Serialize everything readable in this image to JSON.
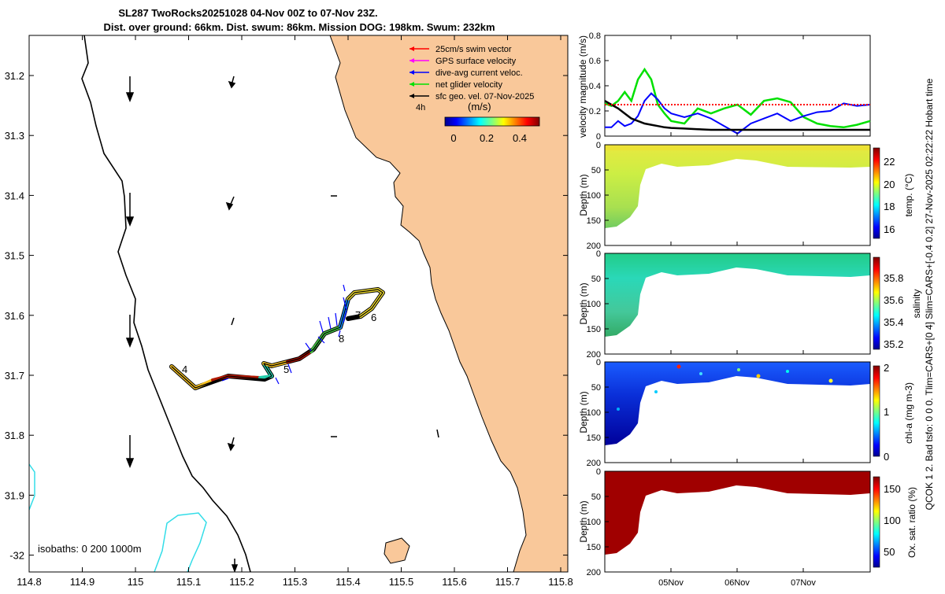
{
  "title": {
    "line1": "SL287 TwoRocks20251028 04-Nov 00Z to 07-Nov 23Z.",
    "line2": "Dist. over ground: 66km. Dist. swum: 86km. Mission DOG: 198km. Swum: 232km"
  },
  "side_text": "QCOK 1  2. Bad tsfo: 0  0  0. Tlim=CARS+[0 4] Slim=CARS+[-0.4 0.2] 27-Nov-2025 02:22:22 Hobart time",
  "colors": {
    "land": "#f9c89a",
    "swim_vector": "#ff0000",
    "gps_velocity": "#ff00ff",
    "current": "#0000ff",
    "glider_velocity": "#00e000",
    "sfc_geo": "#000000",
    "isobath": "#33dde8"
  },
  "map": {
    "x_ticks": [
      "114.8",
      "114.9",
      "115",
      "115.1",
      "115.2",
      "115.3",
      "115.4",
      "115.5",
      "115.6",
      "115.7",
      "115.8"
    ],
    "y_ticks": [
      "31.2",
      "31.3",
      "31.4",
      "31.5",
      "31.6",
      "31.7",
      "31.8",
      "31.9",
      "-32"
    ],
    "legend": [
      {
        "label": "25cm/s swim vector",
        "color": "#ff0000"
      },
      {
        "label": "GPS surface velocity",
        "color": "#ff00ff"
      },
      {
        "label": "dive-avg current veloc.",
        "color": "#0000ff"
      },
      {
        "label": "net glider velocity",
        "color": "#00e000"
      },
      {
        "label": "sfc geo. vel. 07-Nov-2025",
        "color": "#000000"
      }
    ],
    "colorbar_tag": "4h",
    "colorbar_unit": "(m/s)",
    "colorbar_ticks": [
      "0",
      "0.2",
      "0.4"
    ],
    "isobaths_label": "isobaths: 0   200  1000m",
    "day_labels": [
      "4",
      "5",
      "6",
      "7",
      "8"
    ]
  },
  "chart_data": [
    {
      "type": "line",
      "title": "",
      "ylabel": "velocity magnitude (m/s)",
      "ylim": [
        0,
        0.8
      ],
      "y_ticks": [
        "0",
        "0.2",
        "0.4",
        "0.6",
        "0.8"
      ],
      "x": [
        0,
        0.1,
        0.2,
        0.3,
        0.4,
        0.5,
        0.6,
        0.7,
        0.8,
        0.9,
        1.0,
        1.2,
        1.4,
        1.6,
        1.8,
        2.0,
        2.2,
        2.4,
        2.6,
        2.8,
        3.0,
        3.2,
        3.4,
        3.6,
        3.8,
        4.0
      ],
      "series": [
        {
          "name": "net glider velocity",
          "color": "#00e000",
          "values": [
            0.26,
            0.24,
            0.28,
            0.35,
            0.28,
            0.45,
            0.53,
            0.45,
            0.25,
            0.18,
            0.12,
            0.1,
            0.22,
            0.18,
            0.22,
            0.25,
            0.17,
            0.28,
            0.3,
            0.27,
            0.15,
            0.1,
            0.08,
            0.07,
            0.09,
            0.12
          ]
        },
        {
          "name": "dive-avg current veloc.",
          "color": "#0000ff",
          "values": [
            0.07,
            0.07,
            0.12,
            0.08,
            0.1,
            0.16,
            0.28,
            0.34,
            0.29,
            0.22,
            0.18,
            0.15,
            0.18,
            0.14,
            0.08,
            0.02,
            0.1,
            0.14,
            0.18,
            0.12,
            0.16,
            0.19,
            0.2,
            0.26,
            0.24,
            0.25
          ]
        },
        {
          "name": "sfc geo. vel.",
          "color": "#000000",
          "values": [
            0.28,
            0.25,
            0.22,
            0.18,
            0.14,
            0.12,
            0.1,
            0.09,
            0.08,
            0.07,
            0.065,
            0.06,
            0.055,
            0.05,
            0.05,
            0.05,
            0.05,
            0.05,
            0.05,
            0.05,
            0.05,
            0.05,
            0.05,
            0.05,
            0.05,
            0.05
          ]
        },
        {
          "name": "25cm/s swim vector",
          "color": "#ff0000",
          "values": [
            0.25,
            0.25,
            0.25,
            0.25,
            0.25,
            0.25,
            0.25,
            0.25,
            0.25,
            0.25,
            0.25,
            0.25,
            0.25,
            0.25,
            0.25,
            0.25,
            0.25,
            0.25,
            0.25,
            0.25,
            0.25,
            0.25,
            0.25,
            0.25,
            0.25,
            0.25
          ]
        }
      ]
    },
    {
      "type": "heatmap",
      "ylabel": "Depth (m)",
      "ylim": [
        0,
        200
      ],
      "y_ticks": [
        "0",
        "50",
        "100",
        "150",
        "200"
      ],
      "colorbar_label": "temp. (°C)",
      "colorbar_ticks": [
        "22",
        "20",
        "18",
        "16"
      ],
      "x_ticks": [
        "05Nov",
        "06Nov",
        "07Nov"
      ]
    },
    {
      "type": "heatmap",
      "ylabel": "Depth (m)",
      "ylim": [
        0,
        200
      ],
      "y_ticks": [
        "0",
        "50",
        "100",
        "150",
        "200"
      ],
      "colorbar_label": "salinity",
      "colorbar_ticks": [
        "35.8",
        "35.6",
        "35.4",
        "35.2"
      ],
      "x_ticks": [
        "05Nov",
        "06Nov",
        "07Nov"
      ]
    },
    {
      "type": "heatmap",
      "ylabel": "Depth (m)",
      "ylim": [
        0,
        200
      ],
      "y_ticks": [
        "0",
        "50",
        "100",
        "150",
        "200"
      ],
      "colorbar_label": "chl-a (mg m-3)",
      "colorbar_ticks": [
        "2",
        "1",
        "0"
      ],
      "x_ticks": [
        "05Nov",
        "06Nov",
        "07Nov"
      ]
    },
    {
      "type": "heatmap",
      "ylabel": "Depth (m)",
      "ylim": [
        0,
        200
      ],
      "y_ticks": [
        "0",
        "50",
        "100",
        "150",
        "200"
      ],
      "colorbar_label": "Ox. sat. ratio (%)",
      "colorbar_ticks": [
        "150",
        "100",
        "50"
      ],
      "x_ticks": [
        "05Nov",
        "06Nov",
        "07Nov"
      ]
    }
  ]
}
